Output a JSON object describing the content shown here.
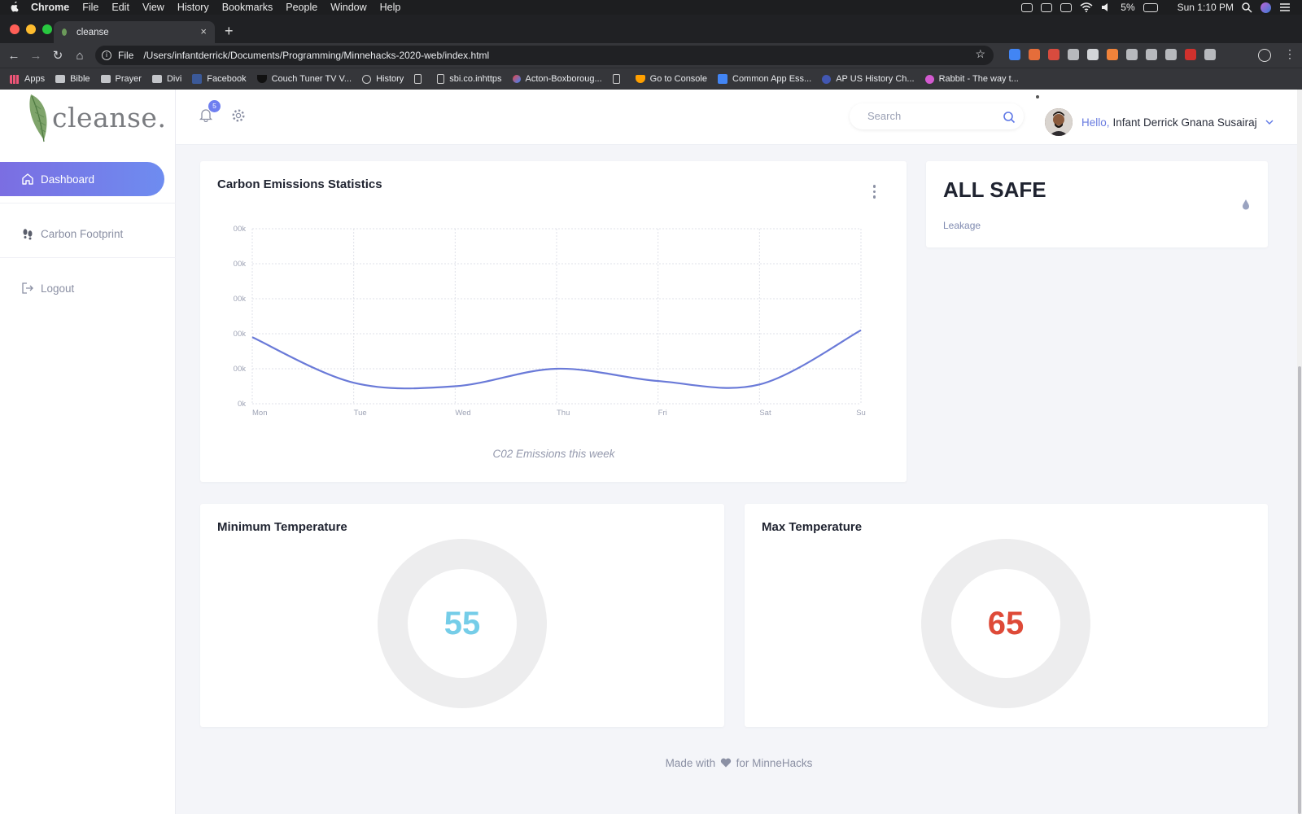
{
  "macos": {
    "menus": [
      "Chrome",
      "File",
      "Edit",
      "View",
      "History",
      "Bookmarks",
      "People",
      "Window",
      "Help"
    ],
    "battery": "5%",
    "clock": "Sun 1:10 PM"
  },
  "browser": {
    "tab_title": "cleanse",
    "url_scheme": "File",
    "url": "/Users/infantderrick/Documents/Programming/Minnehacks-2020-web/index.html",
    "bookmarks": [
      "Apps",
      "Bible",
      "Prayer",
      "Divi",
      "Facebook",
      "Couch Tuner TV V...",
      "History",
      "",
      "sbi.co.inhttps",
      "Acton-Boxboroug...",
      "",
      "Go to Console",
      "Common App Ess...",
      "AP US History Ch...",
      "Rabbit - The way t..."
    ],
    "ext_colors": [
      "#4285f4",
      "#e56d3a",
      "#d84b3e",
      "#b7b9bd",
      "#d3d5d8",
      "#f0833a",
      "#b7b9bd",
      "#b7b9bd",
      "#b7b9bd",
      "#d0312d",
      "#b7b9bd"
    ]
  },
  "app": {
    "brand": "cleanse.",
    "sidebar": {
      "items": [
        {
          "label": "Dashboard",
          "icon": "home-icon",
          "active": true
        },
        {
          "label": "Carbon Footprint",
          "icon": "footprint-icon",
          "active": false
        },
        {
          "label": "Logout",
          "icon": "logout-icon",
          "active": false
        }
      ]
    },
    "header": {
      "notification_count": "5",
      "search_placeholder": "Search",
      "greeting": "Hello,",
      "user_name": "Infant Derrick Gnana Susairaj"
    },
    "carbon_card": {
      "title": "Carbon Emissions Statistics",
      "caption": "C02 Emissions this week"
    },
    "status_card": {
      "status": "ALL SAFE",
      "label": "Leakage"
    },
    "min_temp": {
      "title": "Minimum Temperature",
      "value": "55",
      "color": "#75cde8"
    },
    "max_temp": {
      "title": "Max Temperature",
      "value": "65",
      "color": "#de4a38"
    },
    "footer": {
      "before": "Made with",
      "after": "for MinneHacks"
    },
    "accent": "#6a7ce0"
  },
  "chart_data": {
    "type": "line",
    "categories": [
      "Mon",
      "Tue",
      "Wed",
      "Thu",
      "Fri",
      "Sat",
      "Su"
    ],
    "y_tick_labels": [
      "0k",
      "00k",
      "00k",
      "00k",
      "00k",
      "00k"
    ],
    "ylim": [
      0,
      5
    ],
    "series": [
      {
        "values": [
          1.9,
          0.6,
          0.5,
          1.0,
          0.65,
          0.55,
          2.1
        ]
      }
    ],
    "grid": true,
    "line_color": "#6a7ad8"
  }
}
